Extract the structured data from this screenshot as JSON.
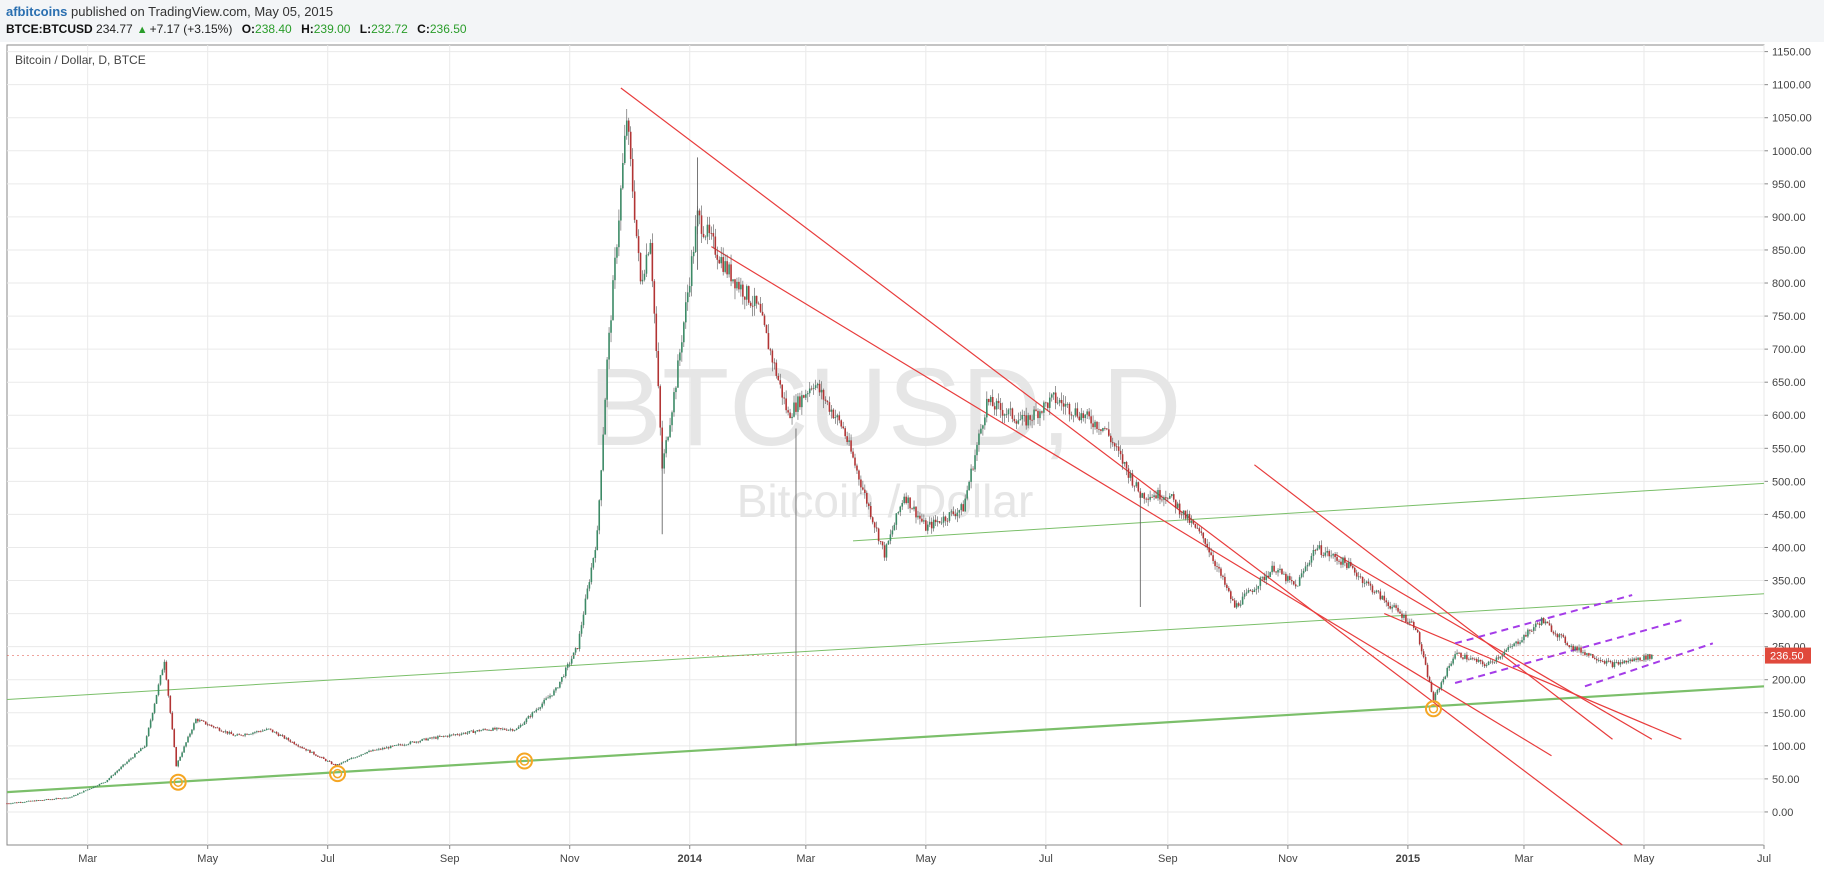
{
  "header": {
    "author": "afbitcoins",
    "published": "published on TradingView.com, May 05, 2015",
    "symbol": "BTCE:BTCUSD",
    "last": "234.77",
    "change": "+7.17 (+3.15%)",
    "o_label": "O:",
    "o": "238.40",
    "h_label": "H:",
    "h": "239.00",
    "l_label": "L:",
    "l": "232.72",
    "c_label": "C:",
    "c": "236.50"
  },
  "colors": {
    "up": "#3c8a66",
    "down": "#b23434",
    "channel": "#e83c3c",
    "support": "#7bbf6a",
    "dashed": "#a43ce8",
    "marker": "#f5a623",
    "price_label": "#e0493c"
  },
  "chart_data": {
    "type": "candlestick",
    "title": "Bitcoin / Dollar, D, BTCE",
    "watermark": "BTCUSD, D",
    "watermark_sub": "Bitcoin / Dollar",
    "x_ticks": [
      "Mar",
      "May",
      "Jul",
      "Sep",
      "Nov",
      "2014",
      "Mar",
      "May",
      "Jul",
      "Sep",
      "Nov",
      "2015",
      "Mar",
      "May",
      "Jul"
    ],
    "x_range": [
      "2013-01-19",
      "2015-07-01"
    ],
    "y_ticks": [
      0,
      50,
      100,
      150,
      200,
      250,
      300,
      350,
      400,
      450,
      500,
      550,
      600,
      650,
      700,
      750,
      800,
      850,
      900,
      950,
      1000,
      1050,
      1100,
      1150
    ],
    "ylim": [
      -50,
      1160
    ],
    "current_price": 236.5,
    "grid": true,
    "price_anchors": [
      [
        "2013-01-19",
        13
      ],
      [
        "2013-02-20",
        22
      ],
      [
        "2013-03-10",
        46
      ],
      [
        "2013-03-30",
        100
      ],
      [
        "2013-04-09",
        230
      ],
      [
        "2013-04-15",
        70
      ],
      [
        "2013-04-25",
        140
      ],
      [
        "2013-05-15",
        115
      ],
      [
        "2013-06-01",
        125
      ],
      [
        "2013-07-05",
        70
      ],
      [
        "2013-07-20",
        90
      ],
      [
        "2013-08-20",
        110
      ],
      [
        "2013-09-20",
        125
      ],
      [
        "2013-10-05",
        125
      ],
      [
        "2013-10-25",
        185
      ],
      [
        "2013-11-05",
        250
      ],
      [
        "2013-11-15",
        420
      ],
      [
        "2013-11-20",
        680
      ],
      [
        "2013-11-30",
        1050
      ],
      [
        "2013-12-07",
        800
      ],
      [
        "2013-12-12",
        870
      ],
      [
        "2013-12-18",
        520
      ],
      [
        "2013-12-25",
        650
      ],
      [
        "2014-01-05",
        900
      ],
      [
        "2014-01-20",
        820
      ],
      [
        "2014-02-05",
        760
      ],
      [
        "2014-02-20",
        600
      ],
      [
        "2014-03-05",
        650
      ],
      [
        "2014-03-20",
        580
      ],
      [
        "2014-04-01",
        470
      ],
      [
        "2014-04-10",
        390
      ],
      [
        "2014-04-20",
        480
      ],
      [
        "2014-05-01",
        430
      ],
      [
        "2014-05-20",
        460
      ],
      [
        "2014-06-01",
        620
      ],
      [
        "2014-06-20",
        590
      ],
      [
        "2014-07-05",
        625
      ],
      [
        "2014-07-31",
        580
      ],
      [
        "2014-08-18",
        480
      ],
      [
        "2014-09-01",
        480
      ],
      [
        "2014-09-20",
        410
      ],
      [
        "2014-10-05",
        310
      ],
      [
        "2014-10-25",
        370
      ],
      [
        "2014-11-05",
        340
      ],
      [
        "2014-11-15",
        400
      ],
      [
        "2014-12-01",
        375
      ],
      [
        "2014-12-20",
        320
      ],
      [
        "2015-01-05",
        280
      ],
      [
        "2015-01-14",
        170
      ],
      [
        "2015-01-25",
        240
      ],
      [
        "2015-02-10",
        222
      ],
      [
        "2015-02-25",
        255
      ],
      [
        "2015-03-10",
        290
      ],
      [
        "2015-03-25",
        250
      ],
      [
        "2015-04-15",
        223
      ],
      [
        "2015-05-05",
        236
      ]
    ],
    "wicks": [
      [
        "2014-02-24",
        100,
        580
      ],
      [
        "2014-08-18",
        310,
        480
      ],
      [
        "2013-12-18",
        420,
        560
      ],
      [
        "2014-01-05",
        820,
        990
      ]
    ],
    "annotations": {
      "channel_lines": [
        [
          [
            "2013-11-27",
            1095
          ],
          [
            "2015-04-20",
            -50
          ]
        ],
        [
          [
            "2014-01-12",
            855
          ],
          [
            "2015-03-15",
            85
          ]
        ],
        [
          [
            "2014-10-15",
            525
          ],
          [
            "2015-04-15",
            110
          ]
        ],
        [
          [
            "2014-11-25",
            390
          ],
          [
            "2015-05-05",
            110
          ]
        ],
        [
          [
            "2014-12-20",
            300
          ],
          [
            "2015-05-20",
            110
          ]
        ]
      ],
      "support_lines": [
        [
          [
            "2013-01-19",
            30
          ],
          [
            "2015-07-01",
            190
          ],
          2.2
        ],
        [
          [
            "2013-01-19",
            170
          ],
          [
            "2015-07-01",
            330
          ],
          1
        ],
        [
          [
            "2014-03-25",
            410
          ],
          [
            "2015-07-01",
            497
          ],
          1
        ]
      ],
      "dashed_lines": [
        [
          [
            "2015-01-25",
            255
          ],
          [
            "2015-04-25",
            328
          ]
        ],
        [
          [
            "2015-01-25",
            195
          ],
          [
            "2015-05-20",
            290
          ]
        ],
        [
          [
            "2015-04-01",
            190
          ],
          [
            "2015-06-05",
            255
          ]
        ]
      ],
      "markers": [
        [
          "2013-04-16",
          45
        ],
        [
          "2013-07-06",
          58
        ],
        [
          "2013-10-09",
          77
        ],
        [
          "2015-01-14",
          156
        ]
      ]
    }
  }
}
